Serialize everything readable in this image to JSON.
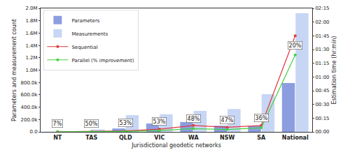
{
  "chart_data": {
    "type": "bar",
    "categories": [
      "NT",
      "TAS",
      "QLD",
      "VIC",
      "WA",
      "NSW",
      "SA",
      "National"
    ],
    "x_label": "Jurisdictional geodetic networks",
    "y_label": "Parameters and measurement count",
    "y2_label": "Estimation time (hr:min)",
    "series": [
      {
        "name": "Parameters",
        "type": "bar",
        "color": "#8c9ee0",
        "values": [
          2000,
          10000,
          55000,
          135000,
          160000,
          100000,
          100000,
          790000
        ]
      },
      {
        "name": "Measurements",
        "type": "bar",
        "color": "#c7d6f4",
        "values": [
          5000,
          40000,
          270000,
          285000,
          340000,
          370000,
          610000,
          1920000
        ]
      },
      {
        "name": "Sequential",
        "type": "line",
        "axis": "y2",
        "color": "#e0393e",
        "marker": "circle",
        "values": [
          0.1,
          0.3,
          1,
          3,
          7,
          5,
          7,
          105
        ]
      },
      {
        "name": "Parallel (% improvement)",
        "type": "line",
        "axis": "y2",
        "color": "#44d044",
        "marker": "circle",
        "values": [
          0.1,
          0.15,
          0.5,
          1.4,
          3.6,
          2.6,
          4.5,
          84
        ]
      }
    ],
    "annotations": [
      {
        "category": "NT",
        "text": "7%"
      },
      {
        "category": "TAS",
        "text": "50%"
      },
      {
        "category": "QLD",
        "text": "53%"
      },
      {
        "category": "VIC",
        "text": "53%"
      },
      {
        "category": "WA",
        "text": "48%"
      },
      {
        "category": "NSW",
        "text": "47%"
      },
      {
        "category": "SA",
        "text": "36%"
      },
      {
        "category": "National",
        "text": "20%"
      }
    ],
    "ylim": [
      0,
      2000000
    ],
    "yticks": [
      {
        "value": 0,
        "label": "0.0"
      },
      {
        "value": 200000,
        "label": "200.0k"
      },
      {
        "value": 400000,
        "label": "400.0k"
      },
      {
        "value": 600000,
        "label": "600.0k"
      },
      {
        "value": 800000,
        "label": "800.0k"
      },
      {
        "value": 1000000,
        "label": "1.0M"
      },
      {
        "value": 1200000,
        "label": "1.2M"
      },
      {
        "value": 1400000,
        "label": "1.4M"
      },
      {
        "value": 1600000,
        "label": "1.6M"
      },
      {
        "value": 1800000,
        "label": "1.8M"
      },
      {
        "value": 2000000,
        "label": "2.0M"
      }
    ],
    "y2lim": [
      0,
      135
    ],
    "y2ticks": [
      {
        "value": 0,
        "label": "00:00"
      },
      {
        "value": 15,
        "label": "00:15"
      },
      {
        "value": 30,
        "label": "00:30"
      },
      {
        "value": 45,
        "label": "00:45"
      },
      {
        "value": 60,
        "label": "01:00"
      },
      {
        "value": 75,
        "label": "01:15"
      },
      {
        "value": 90,
        "label": "01:30"
      },
      {
        "value": 105,
        "label": "01:45"
      },
      {
        "value": 120,
        "label": "02:00"
      },
      {
        "value": 135,
        "label": "02:15"
      }
    ],
    "legend": "upper left",
    "grid": false
  }
}
